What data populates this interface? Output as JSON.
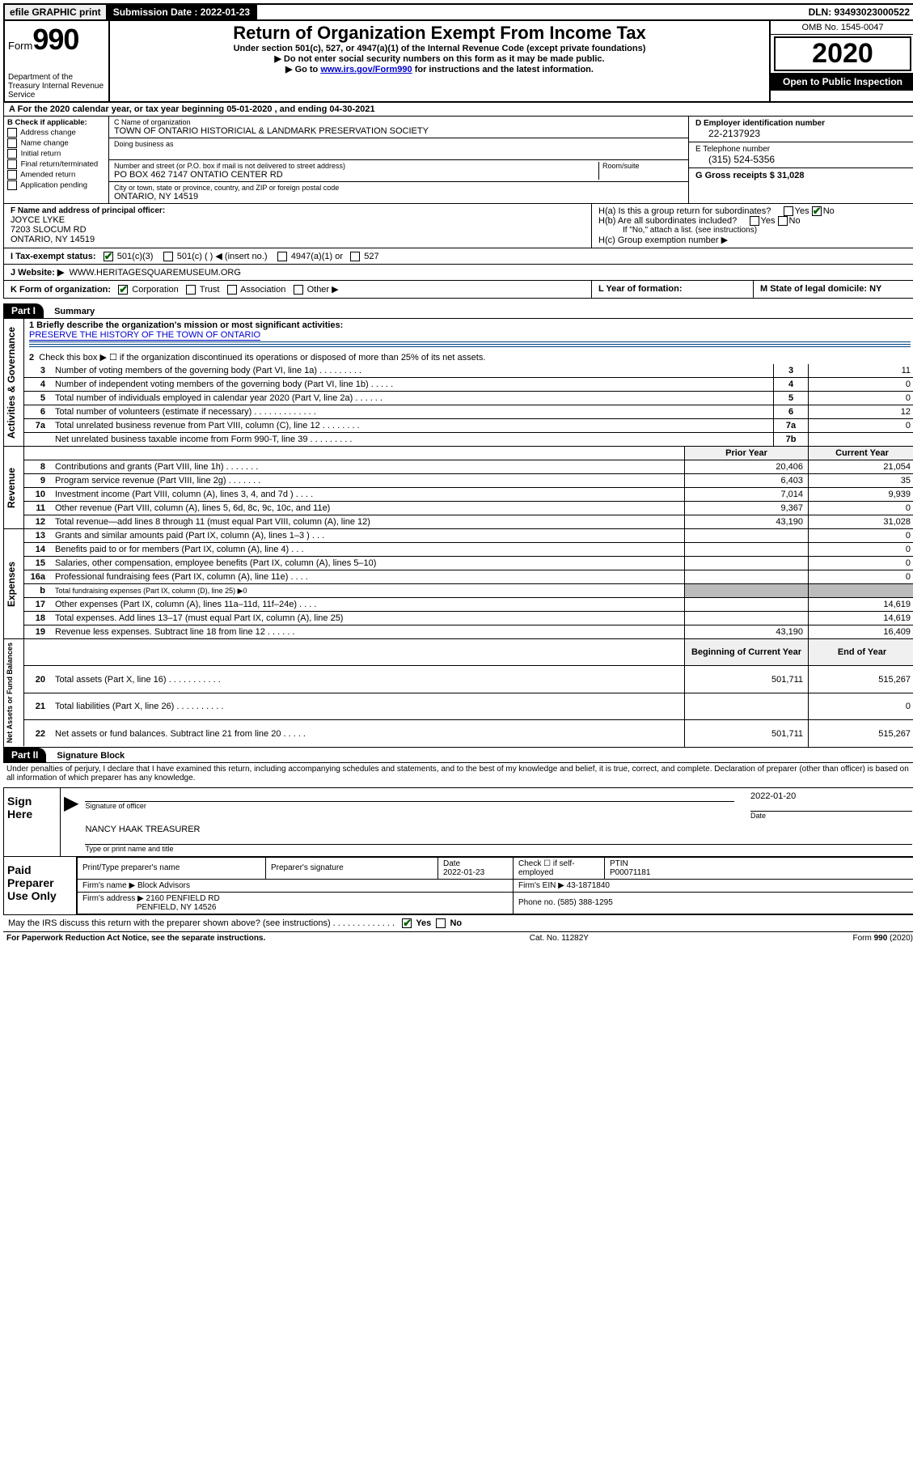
{
  "topbar": {
    "efile": "efile GRAPHIC print",
    "submission_label": "Submission Date : 2022-01-23",
    "dln": "DLN: 93493023000522"
  },
  "header": {
    "form_label": "Form",
    "form_number": "990",
    "dept": "Department of the Treasury\nInternal Revenue Service",
    "title": "Return of Organization Exempt From Income Tax",
    "sub1": "Under section 501(c), 527, or 4947(a)(1) of the Internal Revenue Code (except private foundations)",
    "sub2": "▶ Do not enter social security numbers on this form as it may be made public.",
    "sub3_pre": "▶ Go to ",
    "sub3_link": "www.irs.gov/Form990",
    "sub3_post": " for instructions and the latest information.",
    "omb": "OMB No. 1545-0047",
    "year": "2020",
    "open": "Open to Public\nInspection"
  },
  "row_a": "A For the 2020 calendar year, or tax year beginning 05-01-2020   , and ending 04-30-2021",
  "section_b": {
    "b_label": "B Check if applicable:",
    "checks": [
      "Address change",
      "Name change",
      "Initial return",
      "Final return/terminated",
      "Amended return",
      "Application pending"
    ],
    "c_label": "C Name of organization",
    "org_name": "TOWN OF ONTARIO HISTORICIAL & LANDMARK PRESERVATION SOCIETY",
    "dba_label": "Doing business as",
    "addr_label": "Number and street (or P.O. box if mail is not delivered to street address)",
    "room_label": "Room/suite",
    "addr": "PO BOX 462 7147 ONTATIO CENTER RD",
    "city_label": "City or town, state or province, country, and ZIP or foreign postal code",
    "city": "ONTARIO, NY 14519",
    "d_label": "D Employer identification number",
    "ein": "22-2137923",
    "e_label": "E Telephone number",
    "phone": "(315) 524-5356",
    "g_label": "G Gross receipts $ 31,028"
  },
  "section_f": {
    "f_label": "F  Name and address of principal officer:",
    "name": "JOYCE LYKE",
    "addr1": "7203 SLOCUM RD",
    "addr2": "ONTARIO, NY  14519",
    "ha": "H(a)  Is this a group return for subordinates?",
    "hb": "H(b)  Are all subordinates included?",
    "hb_note": "If \"No,\" attach a list. (see instructions)",
    "hc": "H(c)  Group exemption number ▶"
  },
  "line_i": {
    "label": "I  Tax-exempt status:",
    "opts": [
      "501(c)(3)",
      "501(c) (  ) ◀ (insert no.)",
      "4947(a)(1) or",
      "527"
    ]
  },
  "line_j": {
    "label": "J  Website: ▶",
    "url": "WWW.HERITAGESQUAREMUSEUM.ORG"
  },
  "line_k": {
    "label": "K Form of organization:",
    "opts": [
      "Corporation",
      "Trust",
      "Association",
      "Other ▶"
    ],
    "l": "L Year of formation:",
    "m": "M State of legal domicile: NY"
  },
  "part1": {
    "header": "Part I",
    "title": "Summary",
    "line1_label": "1  Briefly describe the organization's mission or most significant activities:",
    "mission": "PRESERVE THE HISTORY OF THE TOWN OF ONTARIO",
    "line2": "Check this box ▶ ☐  if the organization discontinued its operations or disposed of more than 25% of its net assets.",
    "rows_gov": [
      {
        "n": "3",
        "t": "Number of voting members of the governing body (Part VI, line 1a)  .   .   .   .   .   .   .   .   .",
        "box": "3",
        "v": "11"
      },
      {
        "n": "4",
        "t": "Number of independent voting members of the governing body (Part VI, line 1b)   .   .   .   .   .",
        "box": "4",
        "v": "0"
      },
      {
        "n": "5",
        "t": "Total number of individuals employed in calendar year 2020 (Part V, line 2a)   .   .   .   .   .   .",
        "box": "5",
        "v": "0"
      },
      {
        "n": "6",
        "t": "Total number of volunteers (estimate if necessary)   .   .   .   .   .   .   .   .   .   .   .   .   .",
        "box": "6",
        "v": "12"
      },
      {
        "n": "7a",
        "t": "Total unrelated business revenue from Part VIII, column (C), line 12   .   .   .   .   .   .   .   .",
        "box": "7a",
        "v": "0"
      },
      {
        "n": "",
        "t": "Net unrelated business taxable income from Form 990-T, line 39   .   .   .   .   .   .   .   .   .",
        "box": "7b",
        "v": ""
      }
    ],
    "col_prior": "Prior Year",
    "col_current": "Current Year",
    "rows_rev": [
      {
        "n": "8",
        "t": "Contributions and grants (Part VIII, line 1h)   .   .   .   .   .   .   .",
        "p": "20,406",
        "c": "21,054"
      },
      {
        "n": "9",
        "t": "Program service revenue (Part VIII, line 2g)   .   .   .   .   .   .   .",
        "p": "6,403",
        "c": "35"
      },
      {
        "n": "10",
        "t": "Investment income (Part VIII, column (A), lines 3, 4, and 7d )   .   .   .   .",
        "p": "7,014",
        "c": "9,939"
      },
      {
        "n": "11",
        "t": "Other revenue (Part VIII, column (A), lines 5, 6d, 8c, 9c, 10c, and 11e)",
        "p": "9,367",
        "c": "0"
      },
      {
        "n": "12",
        "t": "Total revenue—add lines 8 through 11 (must equal Part VIII, column (A), line 12)",
        "p": "43,190",
        "c": "31,028"
      }
    ],
    "rows_exp": [
      {
        "n": "13",
        "t": "Grants and similar amounts paid (Part IX, column (A), lines 1–3 )   .   .   .",
        "p": "",
        "c": "0"
      },
      {
        "n": "14",
        "t": "Benefits paid to or for members (Part IX, column (A), line 4)   .   .   .",
        "p": "",
        "c": "0"
      },
      {
        "n": "15",
        "t": "Salaries, other compensation, employee benefits (Part IX, column (A), lines 5–10)",
        "p": "",
        "c": "0"
      },
      {
        "n": "16a",
        "t": "Professional fundraising fees (Part IX, column (A), line 11e)   .   .   .   .",
        "p": "",
        "c": "0"
      },
      {
        "n": "b",
        "t": "Total fundraising expenses (Part IX, column (D), line 25) ▶0",
        "p": "grey",
        "c": "grey"
      },
      {
        "n": "17",
        "t": "Other expenses (Part IX, column (A), lines 11a–11d, 11f–24e)   .   .   .   .",
        "p": "",
        "c": "14,619"
      },
      {
        "n": "18",
        "t": "Total expenses. Add lines 13–17 (must equal Part IX, column (A), line 25)",
        "p": "",
        "c": "14,619"
      },
      {
        "n": "19",
        "t": "Revenue less expenses. Subtract line 18 from line 12   .   .   .   .   .   .",
        "p": "43,190",
        "c": "16,409"
      }
    ],
    "col_begin": "Beginning of Current Year",
    "col_end": "End of Year",
    "rows_net": [
      {
        "n": "20",
        "t": "Total assets (Part X, line 16)   .   .   .   .   .   .   .   .   .   .   .",
        "p": "501,711",
        "c": "515,267"
      },
      {
        "n": "21",
        "t": "Total liabilities (Part X, line 26)   .   .   .   .   .   .   .   .   .   .",
        "p": "",
        "c": "0"
      },
      {
        "n": "22",
        "t": "Net assets or fund balances. Subtract line 21 from line 20  .   .   .   .   .",
        "p": "501,711",
        "c": "515,267"
      }
    ],
    "vlabels": {
      "gov": "Activities & Governance",
      "rev": "Revenue",
      "exp": "Expenses",
      "net": "Net Assets or\nFund Balances"
    }
  },
  "part2": {
    "header": "Part II",
    "title": "Signature Block",
    "decl": "Under penalties of perjury, I declare that I have examined this return, including accompanying schedules and statements, and to the best of my knowledge and belief, it is true, correct, and complete. Declaration of preparer (other than officer) is based on all information of which preparer has any knowledge.",
    "sign_here": "Sign Here",
    "sig_label": "Signature of officer",
    "date_label": "Date",
    "sig_date": "2022-01-20",
    "officer": "NANCY HAAK  TREASURER",
    "officer_label": "Type or print name and title",
    "paid": "Paid Preparer Use Only",
    "prep_name_label": "Print/Type preparer's name",
    "prep_sig_label": "Preparer's signature",
    "prep_date_label": "Date",
    "prep_date": "2022-01-23",
    "check_label": "Check ☐ if self-employed",
    "ptin_label": "PTIN",
    "ptin": "P00071181",
    "firm_name_label": "Firm's name    ▶",
    "firm_name": "Block Advisors",
    "firm_ein_label": "Firm's EIN ▶",
    "firm_ein": "43-1871840",
    "firm_addr_label": "Firm's address ▶",
    "firm_addr": "2160 PENFIELD RD",
    "firm_addr2": "PENFIELD, NY  14526",
    "phone_label": "Phone no.",
    "phone": "(585) 388-1295",
    "discuss": "May the IRS discuss this return with the preparer shown above? (see instructions)   .   .   .   .   .   .   .   .   .   .   .   .   ."
  },
  "footer": {
    "left": "For Paperwork Reduction Act Notice, see the separate instructions.",
    "center": "Cat. No. 11282Y",
    "right": "Form 990 (2020)"
  }
}
